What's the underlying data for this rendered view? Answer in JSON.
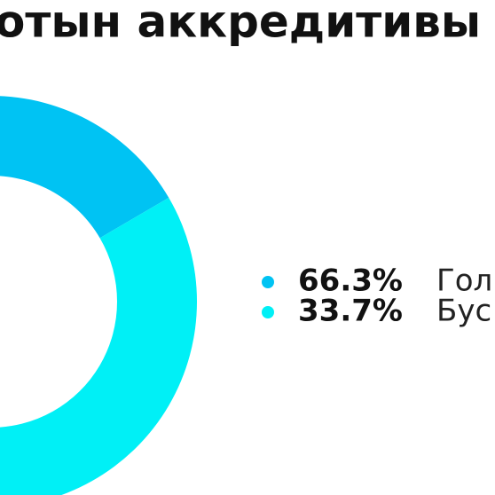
{
  "chart_data": {
    "type": "donut",
    "title": "отын аккредитивы",
    "series": [
      {
        "name": "Гол",
        "color": "#00c3f3",
        "values": [
          66.3
        ],
        "value_labels": [
          "66.3%"
        ]
      },
      {
        "name": "Бус",
        "color": "#00f0f6",
        "values": [
          33.7
        ],
        "value_labels": [
          "33.7%"
        ]
      }
    ],
    "legend": "right"
  }
}
